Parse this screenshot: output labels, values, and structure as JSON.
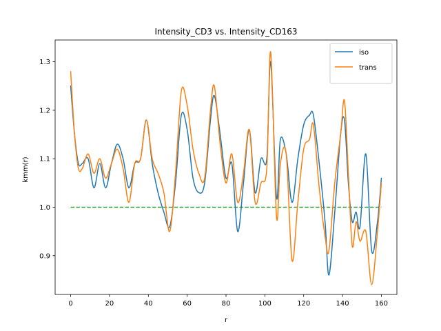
{
  "chart_data": {
    "type": "line",
    "title": "Intensity_CD3 vs. Intensity_CD163",
    "xlabel": "r",
    "ylabel": "kmm(r)",
    "xlim": [
      -8,
      168
    ],
    "ylim": [
      0.82,
      1.345
    ],
    "xticks": [
      0,
      20,
      40,
      60,
      80,
      100,
      120,
      140,
      160
    ],
    "yticks": [
      0.9,
      1.0,
      1.1,
      1.2,
      1.3
    ],
    "xtick_labels": [
      "0",
      "20",
      "40",
      "60",
      "80",
      "100",
      "120",
      "140",
      "160"
    ],
    "ytick_labels": [
      "0.9",
      "1.0",
      "1.1",
      "1.2",
      "1.3"
    ],
    "grid": false,
    "legend_position": "top-right",
    "series": [
      {
        "name": "iso",
        "color": "#1f77b4",
        "style": "solid",
        "x": [
          0,
          2,
          4,
          6,
          9,
          12,
          15,
          18,
          21,
          24,
          27,
          30,
          33,
          36,
          39,
          42,
          45,
          48,
          51,
          54,
          57,
          60,
          63,
          66,
          69,
          72,
          74,
          77,
          80,
          83,
          86,
          89,
          92,
          95,
          98,
          101,
          103,
          106,
          108,
          111,
          114,
          117,
          120,
          123,
          125,
          128,
          131,
          133,
          136,
          139,
          141,
          143,
          145,
          147,
          149,
          152,
          155,
          158,
          160
        ],
        "y": [
          1.25,
          1.15,
          1.09,
          1.09,
          1.1,
          1.04,
          1.09,
          1.04,
          1.09,
          1.13,
          1.1,
          1.04,
          1.09,
          1.1,
          1.18,
          1.09,
          1.03,
          0.99,
          0.96,
          1.05,
          1.19,
          1.16,
          1.06,
          1.03,
          1.05,
          1.18,
          1.23,
          1.15,
          1.06,
          1.09,
          0.95,
          1.05,
          1.16,
          1.03,
          1.1,
          1.1,
          1.3,
          1.02,
          1.14,
          1.11,
          1.01,
          1.1,
          1.17,
          1.19,
          1.19,
          1.09,
          0.97,
          0.86,
          0.99,
          1.15,
          1.18,
          1.05,
          0.97,
          0.99,
          0.96,
          1.11,
          0.91,
          0.97,
          1.06
        ]
      },
      {
        "name": "trans",
        "color": "#ff7f0e",
        "style": "solid",
        "x": [
          0,
          2,
          4,
          6,
          9,
          12,
          15,
          18,
          21,
          24,
          27,
          30,
          33,
          36,
          39,
          42,
          45,
          48,
          51,
          54,
          57,
          60,
          63,
          66,
          69,
          72,
          74,
          77,
          80,
          83,
          86,
          89,
          92,
          95,
          98,
          101,
          103,
          106,
          108,
          111,
          114,
          117,
          120,
          123,
          125,
          128,
          131,
          133,
          136,
          139,
          141,
          143,
          145,
          147,
          149,
          152,
          155,
          158,
          160
        ],
        "y": [
          1.28,
          1.15,
          1.08,
          1.08,
          1.11,
          1.07,
          1.1,
          1.06,
          1.09,
          1.12,
          1.08,
          1.01,
          1.09,
          1.1,
          1.18,
          1.1,
          1.07,
          1.03,
          0.95,
          1.07,
          1.24,
          1.21,
          1.12,
          1.07,
          1.06,
          1.2,
          1.25,
          1.13,
          1.05,
          1.11,
          1.01,
          1.07,
          1.16,
          1.01,
          1.05,
          1.08,
          1.32,
          0.98,
          1.09,
          1.11,
          0.89,
          1.01,
          1.12,
          1.14,
          1.17,
          1.04,
          0.94,
          0.91,
          1.05,
          1.15,
          1.22,
          1.07,
          0.92,
          0.97,
          0.93,
          0.95,
          0.84,
          0.95,
          1.05
        ]
      },
      {
        "name": "",
        "color": "#2ca02c",
        "style": "dashed",
        "x": [
          0,
          160
        ],
        "y": [
          1.0,
          1.0
        ]
      }
    ]
  }
}
